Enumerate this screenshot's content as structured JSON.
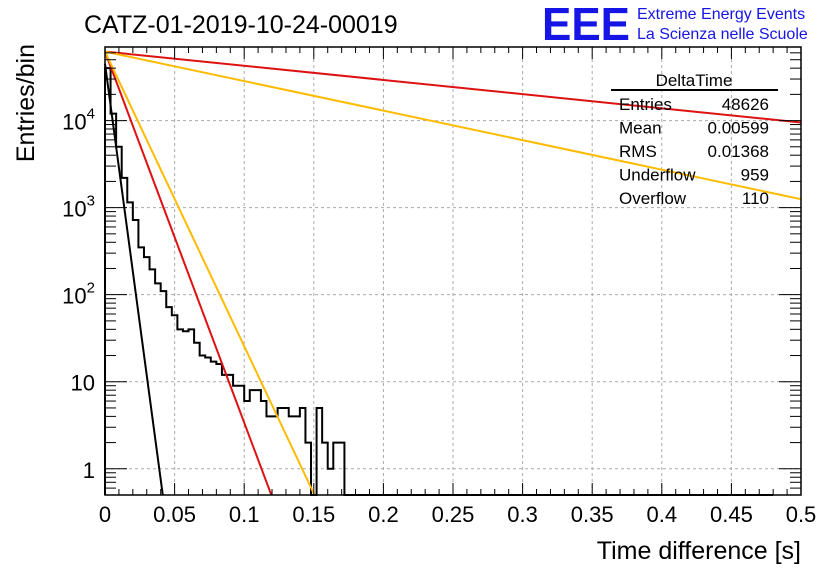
{
  "chart_data": {
    "type": "histogram",
    "title": "CATZ-01-2019-10-24-00019",
    "xlabel": "Time difference [s]",
    "ylabel": "Entries/bin",
    "xlim": [
      0,
      0.5
    ],
    "ylim": [
      0.5,
      70000
    ],
    "y_scale": "log",
    "grid": true,
    "x_ticks": [
      {
        "value": 0,
        "label": "0"
      },
      {
        "value": 0.05,
        "label": "0.05"
      },
      {
        "value": 0.1,
        "label": "0.1"
      },
      {
        "value": 0.15,
        "label": "0.15"
      },
      {
        "value": 0.2,
        "label": "0.2"
      },
      {
        "value": 0.25,
        "label": "0.25"
      },
      {
        "value": 0.3,
        "label": "0.3"
      },
      {
        "value": 0.35,
        "label": "0.35"
      },
      {
        "value": 0.4,
        "label": "0.4"
      },
      {
        "value": 0.45,
        "label": "0.45"
      },
      {
        "value": 0.5,
        "label": "0.5"
      }
    ],
    "y_ticks": [
      {
        "value": 1,
        "label": "1"
      },
      {
        "value": 10,
        "label": "10"
      },
      {
        "value": 100,
        "label": "10",
        "sup": "2"
      },
      {
        "value": 1000,
        "label": "10",
        "sup": "3"
      },
      {
        "value": 10000,
        "label": "10",
        "sup": "4"
      }
    ],
    "histogram": {
      "bin_width": 0.004,
      "x_start": 0,
      "color": "#000000",
      "values": [
        40000,
        12000,
        5000,
        2200,
        1150,
        720,
        350,
        270,
        195,
        135,
        110,
        72,
        58,
        40,
        38,
        40,
        28,
        20,
        19,
        17,
        16,
        12,
        12,
        9,
        9,
        6,
        8,
        8,
        6,
        4,
        4,
        5,
        5,
        4,
        4,
        5,
        2,
        0,
        5,
        2,
        1,
        2,
        2,
        0,
        0,
        0,
        0,
        0,
        0,
        0,
        0,
        0,
        0,
        0,
        0,
        0,
        0,
        0,
        0,
        0,
        0,
        0,
        0,
        0,
        0,
        0,
        0,
        0,
        0,
        0,
        0,
        0,
        0,
        0,
        0,
        0,
        0,
        0,
        0,
        0,
        0,
        0,
        0,
        0,
        0,
        0,
        0,
        0,
        0,
        0,
        0,
        0,
        0,
        0,
        0,
        0,
        0,
        0,
        0,
        0,
        0,
        0,
        0,
        0,
        0,
        0,
        0,
        0,
        0,
        0,
        0,
        0,
        0,
        0,
        0,
        0,
        0,
        0,
        0,
        0
      ]
    },
    "fit_lines": [
      {
        "color": "#000000",
        "points": [
          [
            0,
            45000
          ],
          [
            0.0415,
            0.5
          ]
        ]
      },
      {
        "color": "#dd1111",
        "points": [
          [
            0,
            62000
          ],
          [
            0.1195,
            0.5
          ]
        ]
      },
      {
        "color": "#ffbb00",
        "points": [
          [
            0,
            62000
          ],
          [
            0.1505,
            0.5
          ]
        ]
      },
      {
        "color": "#dd1111",
        "points": [
          [
            0,
            62000
          ],
          [
            0.5,
            9500
          ]
        ]
      },
      {
        "color": "#ffbb00",
        "points": [
          [
            0,
            62000
          ],
          [
            0.5,
            1250
          ]
        ]
      }
    ],
    "stats_box": {
      "title": "DeltaTime",
      "rows": [
        {
          "label": "Entries",
          "value": "48626"
        },
        {
          "label": "Mean",
          "value": "0.00599"
        },
        {
          "label": "RMS",
          "value": "0.01368"
        },
        {
          "label": "Underflow",
          "value": "959"
        },
        {
          "label": "Overflow",
          "value": "110"
        }
      ]
    }
  },
  "branding": {
    "logo_text": "EEE",
    "line1": "Extreme Energy Events",
    "line2": "La Scienza nelle Scuole",
    "color": "#1515e6"
  }
}
